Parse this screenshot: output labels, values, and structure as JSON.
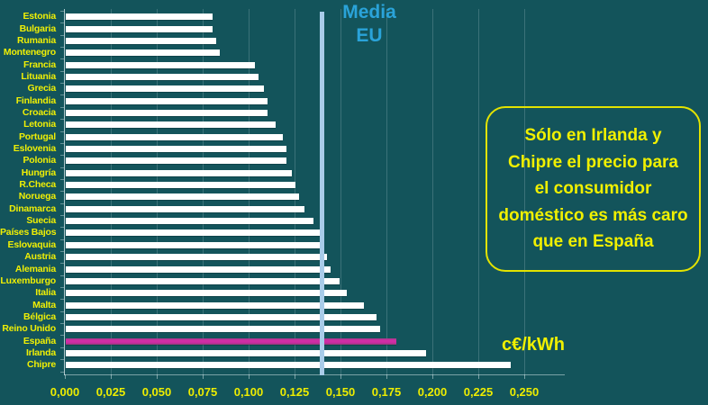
{
  "chart_data": {
    "type": "bar",
    "orientation": "horizontal",
    "title": "",
    "unit_label": "c€/kWh",
    "xlabel": "",
    "ylabel": "",
    "xlim": [
      0,
      0.25
    ],
    "grid": true,
    "categories": [
      "Estonia",
      "Bulgaria",
      "Rumania",
      "Montenegro",
      "Francia",
      "Lituania",
      "Grecia",
      "Finlandia",
      "Croacia",
      "Letonia",
      "Portugal",
      "Eslovenia",
      "Polonia",
      "Hungría",
      "R.Checa",
      "Noruega",
      "Dinamarca",
      "Suecia",
      "Países Bajos",
      "Eslovaquia",
      "Austria",
      "Alemania",
      "Luxemburgo",
      "Italia",
      "Malta",
      "Bélgica",
      "Reino Unido",
      "España",
      "Irlanda",
      "Chipre"
    ],
    "values": [
      0.08,
      0.08,
      0.082,
      0.084,
      0.103,
      0.105,
      0.108,
      0.11,
      0.11,
      0.114,
      0.118,
      0.12,
      0.12,
      0.123,
      0.125,
      0.127,
      0.13,
      0.135,
      0.138,
      0.14,
      0.142,
      0.144,
      0.149,
      0.153,
      0.162,
      0.169,
      0.171,
      0.18,
      0.196,
      0.242
    ],
    "x_ticks": [
      "0,000",
      "0,025",
      "0,050",
      "0,075",
      "0,100",
      "0,125",
      "0,150",
      "0,175",
      "0,200",
      "0,225",
      "0,250"
    ],
    "x_tick_values": [
      0,
      0.025,
      0.05,
      0.075,
      0.1,
      0.125,
      0.15,
      0.175,
      0.2,
      0.225,
      0.25
    ],
    "bar_color": "#FFFFFF",
    "highlight_category": "España",
    "highlight_color": "#C92DA1",
    "background_color": "#13545B",
    "label_color": "#EFEF05",
    "reference_line": {
      "label": "Media EU",
      "label_lines": [
        "Media",
        "EU"
      ],
      "value": 0.14,
      "color": "#A9CCE9",
      "label_color": "#2AA3D9"
    }
  },
  "annotation": {
    "text": "Sólo en Irlanda y Chipre el precio para el consumidor doméstico es más caro que en España",
    "lines": [
      "Sólo en Irlanda y",
      "Chipre el precio para",
      "el consumidor",
      "doméstico es más caro",
      "que en España"
    ],
    "border_color": "#E3E300",
    "text_color": "#F0F000"
  }
}
